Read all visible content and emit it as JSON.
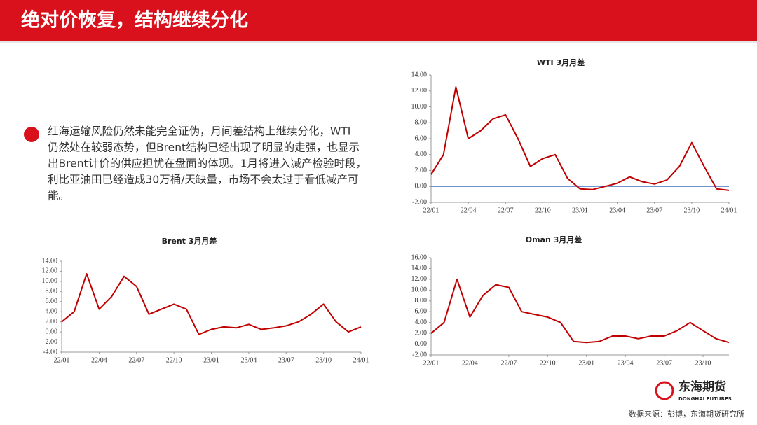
{
  "header": {
    "title": "绝对价恢复，结构继续分化"
  },
  "body": {
    "lines": [
      "红海运输风险仍然未能完全证伪，月间差结构上继续分化，WTI",
      "仍然处在较弱态势，但Brent结构已经出现了明显的走强，也显示",
      "出Brent计价的供应担忧在盘面的体现。1月将进入减产检验时段，",
      "利比亚油田已经造成30万桶/天缺量，市场不会太过于看低减产可",
      "能。"
    ]
  },
  "footer": {
    "logo_cn": "东海期货",
    "logo_en": "DONGHAI FUTURES",
    "source": "数据来源：彭博，东海期货研究所"
  },
  "chart_data": [
    {
      "type": "line",
      "title": "WTI 3月月差",
      "x": [
        "22/01",
        "22/02",
        "22/03",
        "22/04",
        "22/05",
        "22/06",
        "22/07",
        "22/08",
        "22/09",
        "22/10",
        "22/11",
        "22/12",
        "23/01",
        "23/02",
        "23/03",
        "23/04",
        "23/05",
        "23/06",
        "23/07",
        "23/08",
        "23/09",
        "23/10",
        "23/11",
        "23/12",
        "24/01"
      ],
      "series": [
        {
          "color": "#c00000",
          "values": [
            1.5,
            4.0,
            12.5,
            6.0,
            7.0,
            8.5,
            9.0,
            6.0,
            2.5,
            3.5,
            4.0,
            1.0,
            -0.3,
            -0.4,
            0.0,
            0.4,
            1.2,
            0.6,
            0.3,
            0.8,
            2.5,
            5.5,
            2.5,
            -0.3,
            -0.5
          ]
        }
      ],
      "ylim": [
        -2,
        14
      ],
      "yticks": [
        {
          "value": -2,
          "label": "-2.00"
        },
        {
          "value": 0,
          "label": "0.00"
        },
        {
          "value": 2,
          "label": "2.00"
        },
        {
          "value": 4,
          "label": "4.00"
        },
        {
          "value": 6,
          "label": "6.00"
        },
        {
          "value": 8,
          "label": "8.00"
        },
        {
          "value": 10,
          "label": "10.00"
        },
        {
          "value": 12,
          "label": "12.00"
        },
        {
          "value": 14,
          "label": "14.00"
        }
      ],
      "hline": {
        "value": 0,
        "color": "#4472c4"
      }
    },
    {
      "type": "line",
      "title": "Brent 3月月差",
      "x": [
        "22/01",
        "22/02",
        "22/03",
        "22/04",
        "22/05",
        "22/06",
        "22/07",
        "22/08",
        "22/09",
        "22/10",
        "22/11",
        "22/12",
        "23/01",
        "23/02",
        "23/03",
        "23/04",
        "23/05",
        "23/06",
        "23/07",
        "23/08",
        "23/09",
        "23/10",
        "23/11",
        "23/12",
        "24/01"
      ],
      "series": [
        {
          "color": "#c00000",
          "values": [
            2.0,
            4.0,
            11.5,
            4.5,
            7.0,
            11.0,
            9.0,
            3.5,
            4.5,
            5.5,
            4.5,
            -0.5,
            0.5,
            1.0,
            0.8,
            1.5,
            0.5,
            0.8,
            1.2,
            2.0,
            3.5,
            5.5,
            2.0,
            0.0,
            1.0
          ]
        }
      ],
      "ylim": [
        -4,
        14
      ],
      "yticks": [
        {
          "value": -4,
          "label": "-4.00"
        },
        {
          "value": -2,
          "label": "-2.00"
        },
        {
          "value": 0,
          "label": "0.00"
        },
        {
          "value": 2,
          "label": "2.00"
        },
        {
          "value": 4,
          "label": "4.00"
        },
        {
          "value": 6,
          "label": "6.00"
        },
        {
          "value": 8,
          "label": "8.00"
        },
        {
          "value": 10,
          "label": "10.00"
        },
        {
          "value": 12,
          "label": "12.00"
        },
        {
          "value": 14,
          "label": "14.00"
        }
      ]
    },
    {
      "type": "line",
      "title": "Oman 3月月差",
      "x": [
        "22/01",
        "22/02",
        "22/03",
        "22/04",
        "22/05",
        "22/06",
        "22/07",
        "22/08",
        "22/09",
        "22/10",
        "22/11",
        "22/12",
        "23/01",
        "23/02",
        "23/03",
        "23/04",
        "23/05",
        "23/06",
        "23/07",
        "23/08",
        "23/09",
        "23/10",
        "23/11",
        "23/12"
      ],
      "series": [
        {
          "color": "#c00000",
          "values": [
            2.0,
            4.0,
            12.0,
            5.0,
            9.0,
            11.0,
            10.5,
            6.0,
            5.5,
            5.0,
            4.0,
            0.5,
            0.3,
            0.5,
            1.5,
            1.5,
            1.0,
            1.5,
            1.5,
            2.5,
            4.0,
            2.5,
            1.0,
            0.3
          ]
        }
      ],
      "ylim": [
        -2,
        16
      ],
      "yticks": [
        {
          "value": -2,
          "label": "-2.00"
        },
        {
          "value": 0,
          "label": "0.00"
        },
        {
          "value": 2,
          "label": "2.00"
        },
        {
          "value": 4,
          "label": "4.00"
        },
        {
          "value": 6,
          "label": "6.00"
        },
        {
          "value": 8,
          "label": "8.00"
        },
        {
          "value": 10,
          "label": "10.00"
        },
        {
          "value": 12,
          "label": "12.00"
        },
        {
          "value": 14,
          "label": "14.00"
        },
        {
          "value": 16,
          "label": "16.00"
        }
      ]
    }
  ]
}
